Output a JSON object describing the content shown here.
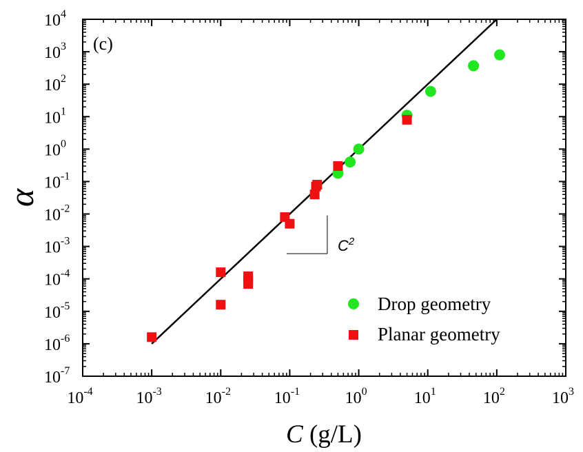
{
  "chart_data": {
    "type": "scatter",
    "xscale": "log",
    "yscale": "log",
    "xlim": [
      0.0001,
      1000
    ],
    "ylim": [
      1e-07,
      10000
    ],
    "x_tick_labels": [
      {
        "base": "10",
        "exp": "-4"
      },
      {
        "base": "10",
        "exp": "-3"
      },
      {
        "base": "10",
        "exp": "-2"
      },
      {
        "base": "10",
        "exp": "-1"
      },
      {
        "base": "10",
        "exp": "0"
      },
      {
        "base": "10",
        "exp": "1"
      },
      {
        "base": "10",
        "exp": "2"
      },
      {
        "base": "10",
        "exp": "3"
      }
    ],
    "y_tick_labels": [
      {
        "base": "10",
        "exp": "-7"
      },
      {
        "base": "10",
        "exp": "-6"
      },
      {
        "base": "10",
        "exp": "-5"
      },
      {
        "base": "10",
        "exp": "-4"
      },
      {
        "base": "10",
        "exp": "-3"
      },
      {
        "base": "10",
        "exp": "-2"
      },
      {
        "base": "10",
        "exp": "-1"
      },
      {
        "base": "10",
        "exp": "0"
      },
      {
        "base": "10",
        "exp": "1"
      },
      {
        "base": "10",
        "exp": "2"
      },
      {
        "base": "10",
        "exp": "3"
      },
      {
        "base": "10",
        "exp": "4"
      }
    ],
    "xlabel": {
      "var": "C",
      "unit": " (g/L)"
    },
    "ylabel": "α",
    "panel_label": "(c)",
    "legend_position": "bottom-right",
    "series": [
      {
        "name": "Drop geometry",
        "marker": "circle",
        "color": "#22e622",
        "points": [
          {
            "x": 0.5,
            "y": 0.18
          },
          {
            "x": 0.75,
            "y": 0.4
          },
          {
            "x": 1.0,
            "y": 1.0
          },
          {
            "x": 5.0,
            "y": 11
          },
          {
            "x": 11,
            "y": 60
          },
          {
            "x": 46,
            "y": 370
          },
          {
            "x": 110,
            "y": 800
          }
        ]
      },
      {
        "name": "Planar geometry",
        "marker": "square",
        "color": "#ee1111",
        "points": [
          {
            "x": 0.001,
            "y": 1.6e-06
          },
          {
            "x": 0.01,
            "y": 1.6e-05
          },
          {
            "x": 0.01,
            "y": 0.00016
          },
          {
            "x": 0.025,
            "y": 7e-05
          },
          {
            "x": 0.025,
            "y": 9e-05
          },
          {
            "x": 0.025,
            "y": 0.00012
          },
          {
            "x": 0.085,
            "y": 0.008
          },
          {
            "x": 0.1,
            "y": 0.005
          },
          {
            "x": 0.23,
            "y": 0.04
          },
          {
            "x": 0.24,
            "y": 0.07
          },
          {
            "x": 0.25,
            "y": 0.08
          },
          {
            "x": 0.5,
            "y": 0.3
          },
          {
            "x": 5.0,
            "y": 8
          }
        ]
      }
    ],
    "fit_line": {
      "x": [
        0.001,
        100
      ],
      "y": [
        1e-06,
        10000
      ],
      "color": "#000000"
    },
    "slope_guide": {
      "label": {
        "var": "C",
        "exp": "2"
      },
      "corner": {
        "x": 0.35,
        "y": 0.0006
      },
      "top": {
        "x": 0.35,
        "y": 0.009
      },
      "left": {
        "x": 0.09,
        "y": 0.0006
      }
    }
  }
}
